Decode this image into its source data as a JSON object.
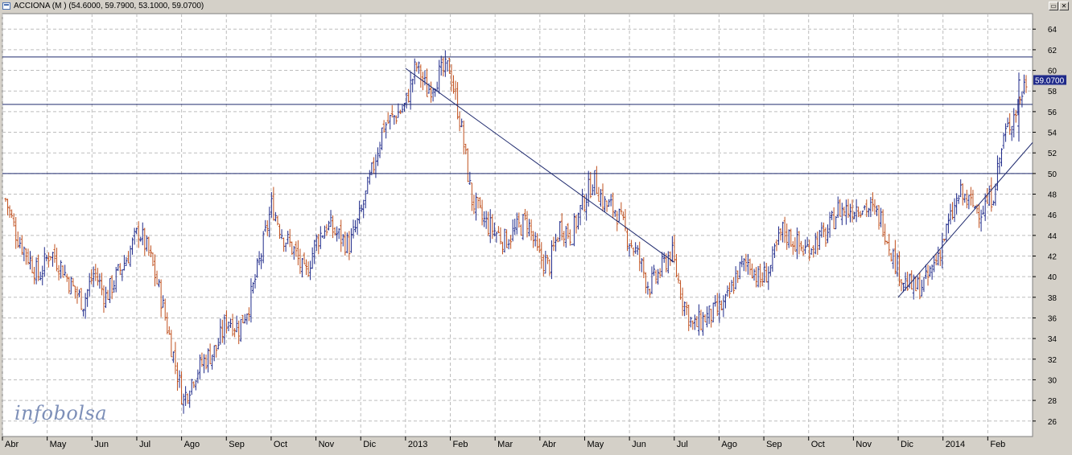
{
  "window": {
    "title": "ACCIONA (M ) (54.6000, 59.7900, 53.1000, 59.0700)",
    "restore_glyph": "▭",
    "close_glyph": "✕"
  },
  "brand": "infobolsa",
  "colors": {
    "background": "#ffffff",
    "frame": "#d4d0c8",
    "grid": "#bdbdbd",
    "up_bar": "#1f2a8a",
    "down_bar": "#c0501e",
    "trendline": "#1f2a6e",
    "price_badge": "#1f2a8a"
  },
  "chart_data": {
    "type": "ohlc",
    "title": "ACCIONA (M )",
    "last_ohlc": {
      "open": 54.6,
      "high": 59.79,
      "low": 53.1,
      "close": 59.07
    },
    "price_label": "59.0700",
    "ylim": [
      24.5,
      65.5
    ],
    "yticks": [
      26,
      28,
      30,
      32,
      34,
      36,
      38,
      40,
      42,
      44,
      46,
      48,
      50,
      52,
      54,
      56,
      58,
      60,
      62,
      64
    ],
    "x_labels": [
      "Abr",
      "May",
      "Jun",
      "Jul",
      "Ago",
      "Sep",
      "Oct",
      "Nov",
      "Dic",
      "2013",
      "Feb",
      "Mar",
      "Abr",
      "May",
      "Jun",
      "Jul",
      "Ago",
      "Sep",
      "Oct",
      "Nov",
      "Dic",
      "2014",
      "Feb"
    ],
    "x_months": [
      "2012-04",
      "2012-05",
      "2012-06",
      "2012-07",
      "2012-08",
      "2012-09",
      "2012-10",
      "2012-11",
      "2012-12",
      "2013-01",
      "2013-02",
      "2013-03",
      "2013-04",
      "2013-05",
      "2013-06",
      "2013-07",
      "2013-08",
      "2013-09",
      "2013-10",
      "2013-11",
      "2013-12",
      "2014-01",
      "2014-02"
    ],
    "x_range": [
      "2012-04",
      "2014-03"
    ],
    "horizontal_lines": [
      61.3,
      56.7,
      50.0
    ],
    "trendlines": [
      {
        "from": [
          "2013-01",
          60.2
        ],
        "to": [
          "2013-07",
          41.4
        ]
      },
      {
        "from": [
          "2013-12",
          38.0
        ],
        "to": [
          "2014-03",
          53.0
        ]
      }
    ],
    "price_path": [
      [
        "2012-04",
        47.5
      ],
      [
        "2012-04",
        44.0
      ],
      [
        "2012-04",
        42.0
      ],
      [
        "2012-04",
        40.0
      ],
      [
        "2012-05",
        42.5
      ],
      [
        "2012-05",
        41.0
      ],
      [
        "2012-05",
        39.0
      ],
      [
        "2012-05",
        37.5
      ],
      [
        "2012-06",
        40.5
      ],
      [
        "2012-06",
        38.0
      ],
      [
        "2012-06",
        40.0
      ],
      [
        "2012-06",
        42.0
      ],
      [
        "2012-07",
        44.5
      ],
      [
        "2012-07",
        42.0
      ],
      [
        "2012-07",
        38.0
      ],
      [
        "2012-07",
        33.0
      ],
      [
        "2012-07",
        28.0
      ],
      [
        "2012-08",
        30.5
      ],
      [
        "2012-08",
        32.0
      ],
      [
        "2012-08",
        33.0
      ],
      [
        "2012-08",
        36.0
      ],
      [
        "2012-09",
        35.0
      ],
      [
        "2012-09",
        37.5
      ],
      [
        "2012-09",
        42.0
      ],
      [
        "2012-09",
        47.0
      ],
      [
        "2012-10",
        44.0
      ],
      [
        "2012-10",
        42.5
      ],
      [
        "2012-10",
        40.0
      ],
      [
        "2012-10",
        43.5
      ],
      [
        "2012-11",
        45.0
      ],
      [
        "2012-11",
        44.0
      ],
      [
        "2012-11",
        43.0
      ],
      [
        "2012-11",
        46.0
      ],
      [
        "2012-12",
        50.0
      ],
      [
        "2012-12",
        54.5
      ],
      [
        "2012-12",
        55.5
      ],
      [
        "2012-12",
        56.5
      ],
      [
        "2013-01",
        60.5
      ],
      [
        "2013-01",
        58.0
      ],
      [
        "2013-01",
        59.5
      ],
      [
        "2013-01",
        60.3
      ],
      [
        "2013-02",
        55.0
      ],
      [
        "2013-02",
        47.5
      ],
      [
        "2013-02",
        45.5
      ],
      [
        "2013-02",
        44.5
      ],
      [
        "2013-03",
        43.5
      ],
      [
        "2013-03",
        44.5
      ],
      [
        "2013-03",
        45.5
      ],
      [
        "2013-04",
        42.0
      ],
      [
        "2013-04",
        41.0
      ],
      [
        "2013-04",
        45.0
      ],
      [
        "2013-04",
        44.0
      ],
      [
        "2013-05",
        47.0
      ],
      [
        "2013-05",
        49.5
      ],
      [
        "2013-05",
        47.0
      ],
      [
        "2013-05",
        46.5
      ],
      [
        "2013-06",
        44.0
      ],
      [
        "2013-06",
        42.0
      ],
      [
        "2013-06",
        39.0
      ],
      [
        "2013-06",
        40.5
      ],
      [
        "2013-07",
        42.5
      ],
      [
        "2013-07",
        38.0
      ],
      [
        "2013-07",
        35.0
      ],
      [
        "2013-07",
        36.0
      ],
      [
        "2013-08",
        36.5
      ],
      [
        "2013-08",
        37.5
      ],
      [
        "2013-08",
        40.5
      ],
      [
        "2013-08",
        41.5
      ],
      [
        "2013-09",
        39.5
      ],
      [
        "2013-09",
        41.0
      ],
      [
        "2013-09",
        44.5
      ],
      [
        "2013-09",
        43.5
      ],
      [
        "2013-10",
        42.5
      ],
      [
        "2013-10",
        43.5
      ],
      [
        "2013-10",
        44.0
      ],
      [
        "2013-10",
        46.5
      ],
      [
        "2013-11",
        46.5
      ],
      [
        "2013-11",
        47.0
      ],
      [
        "2013-11",
        46.5
      ],
      [
        "2013-11",
        45.5
      ],
      [
        "2013-12",
        42.0
      ],
      [
        "2013-12",
        39.5
      ],
      [
        "2013-12",
        38.8
      ],
      [
        "2013-12",
        39.5
      ],
      [
        "2014-01",
        42.0
      ],
      [
        "2014-01",
        45.0
      ],
      [
        "2014-01",
        48.0
      ],
      [
        "2014-01",
        47.0
      ],
      [
        "2014-02",
        46.5
      ],
      [
        "2014-02",
        48.0
      ],
      [
        "2014-02",
        53.5
      ],
      [
        "2014-02",
        56.0
      ],
      [
        "2014-03",
        59.07
      ]
    ]
  }
}
